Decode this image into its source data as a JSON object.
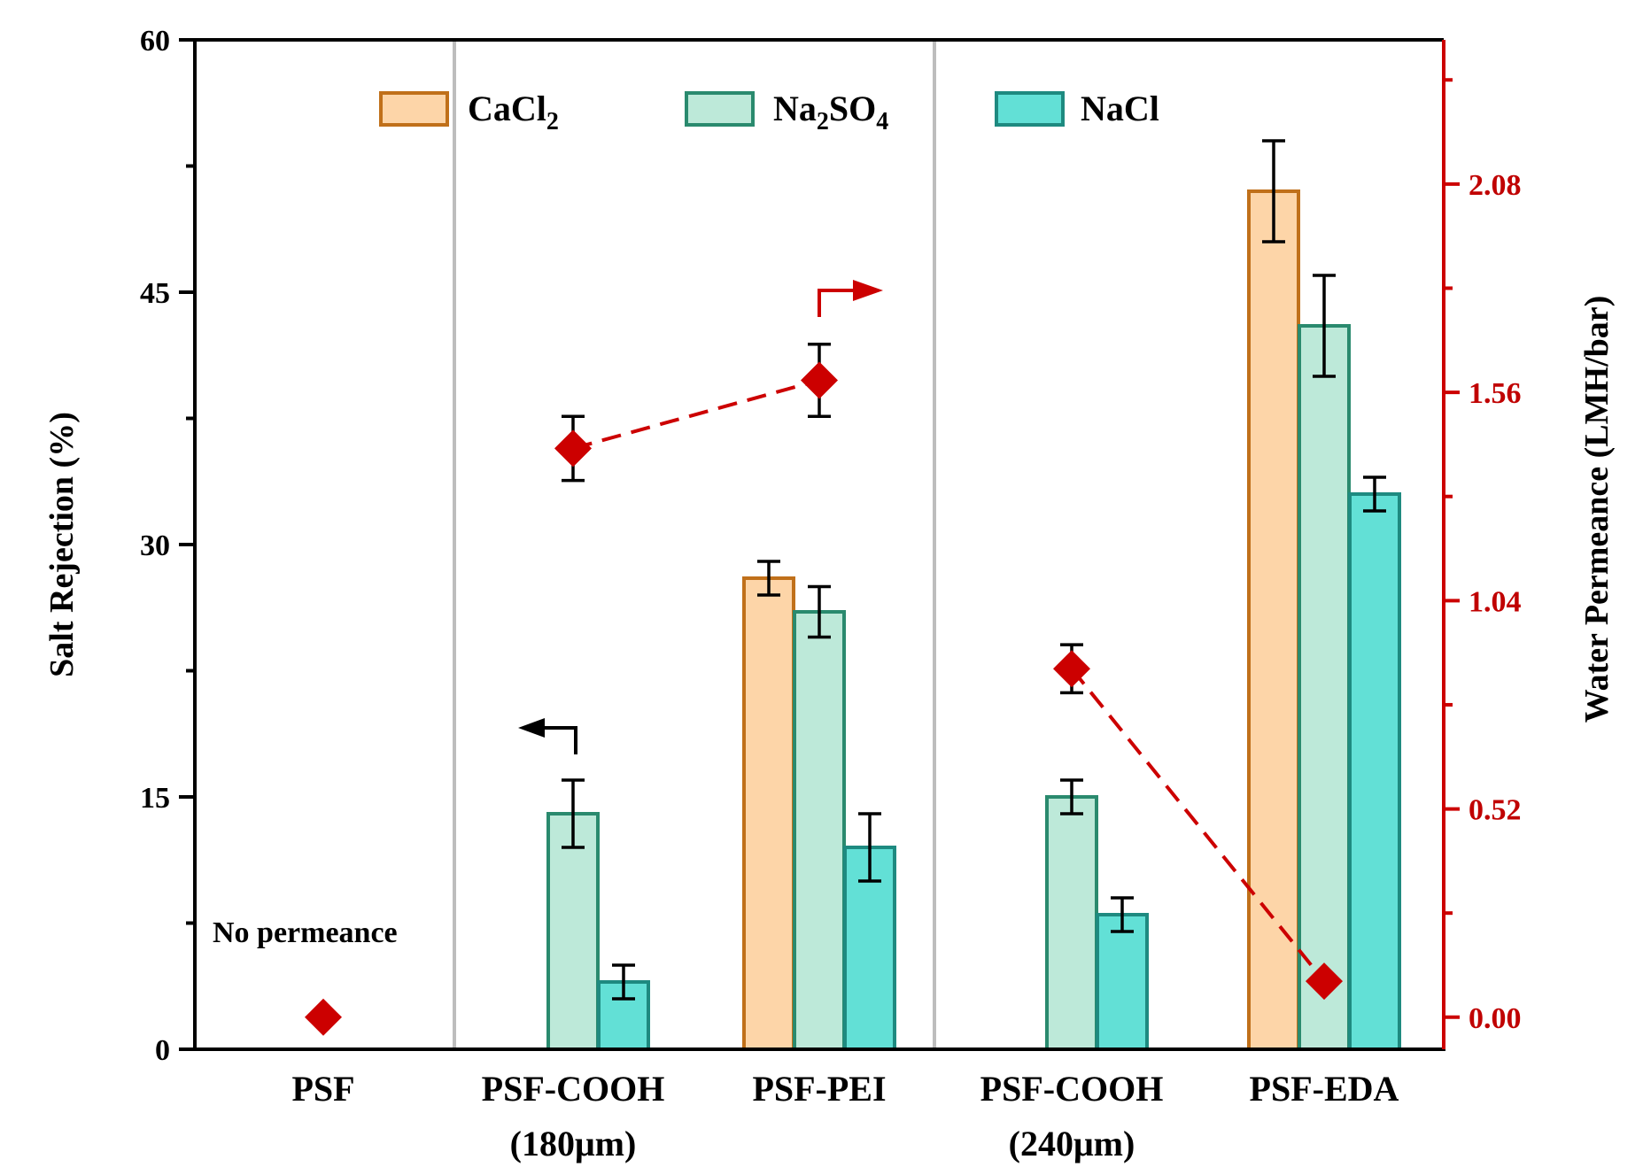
{
  "chart_data": {
    "type": "bar",
    "categories": [
      {
        "line1": "PSF",
        "line2": ""
      },
      {
        "line1": "PSF-COOH",
        "line2": "(180μm)"
      },
      {
        "line1": "PSF-PEI",
        "line2": ""
      },
      {
        "line1": "PSF-COOH",
        "line2": "(240μm)"
      },
      {
        "line1": "PSF-EDA",
        "line2": ""
      }
    ],
    "left_axis": {
      "title": "Salt Rejection (%)",
      "range": [
        0,
        60
      ],
      "ticks": [
        "0",
        "15",
        "30",
        "45",
        "60"
      ]
    },
    "right_axis": {
      "title": "Water Permeance (LMH/bar)",
      "range": [
        -0.08,
        2.44
      ],
      "ticks": [
        "0.00",
        "0.52",
        "1.04",
        "1.56",
        "2.08"
      ]
    },
    "series": [
      {
        "name_main": "CaCl",
        "name_sub": "2",
        "name_tail": "",
        "fill": "#fdd5a8",
        "stroke": "#c0701a",
        "values": [
          null,
          null,
          28,
          null,
          51
        ],
        "errors": [
          null,
          null,
          1,
          null,
          3
        ]
      },
      {
        "name_main": "Na",
        "name_sub": "2",
        "name_tail": "SO",
        "name_sub2": "4",
        "fill": "#bde9d9",
        "stroke": "#2a8a6e",
        "values": [
          null,
          14,
          26,
          15,
          43
        ],
        "errors": [
          null,
          2,
          1.5,
          1,
          3
        ]
      },
      {
        "name_main": "NaCl",
        "name_sub": "",
        "name_tail": "",
        "fill": "#62e0d6",
        "stroke": "#1e8a80",
        "values": [
          null,
          4,
          12,
          8,
          33
        ],
        "errors": [
          null,
          1,
          2,
          1,
          1
        ]
      }
    ],
    "permeance": {
      "name": "Water Permeance",
      "color": "#cc0000",
      "values": [
        0,
        1.42,
        1.59,
        0.87,
        0.09
      ],
      "errors": [
        null,
        0.08,
        0.09,
        0.06,
        null
      ],
      "segments": [
        [
          1,
          2
        ],
        [
          3,
          4
        ]
      ]
    },
    "annotations": {
      "no_permeance": "No permeance"
    }
  }
}
